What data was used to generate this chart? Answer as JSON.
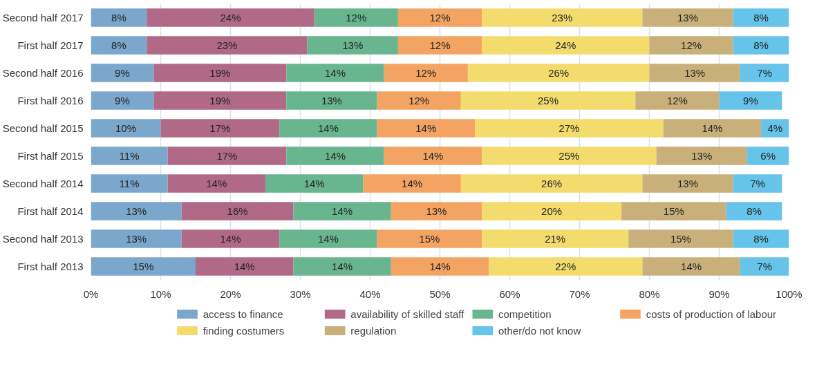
{
  "chart_data": {
    "type": "bar",
    "orientation": "horizontal",
    "stacked": true,
    "grid": "x",
    "legend": "bottom",
    "categories": [
      "Second half 2017",
      "First half 2017",
      "Second half 2016",
      "First half 2016",
      "Second half 2015",
      "First half 2015",
      "Second half 2014",
      "First half 2014",
      "Second half 2013",
      "First half 2013"
    ],
    "xlim": [
      0,
      100
    ],
    "xticks": [
      {
        "value": 0,
        "label": "0%"
      },
      {
        "value": 10,
        "label": "10%"
      },
      {
        "value": 20,
        "label": "20%"
      },
      {
        "value": 30,
        "label": "30%"
      },
      {
        "value": 40,
        "label": "40%"
      },
      {
        "value": 50,
        "label": "50%"
      },
      {
        "value": 60,
        "label": "60%"
      },
      {
        "value": 70,
        "label": "70%"
      },
      {
        "value": 80,
        "label": "80%"
      },
      {
        "value": 90,
        "label": "90%"
      },
      {
        "value": 100,
        "label": "100%"
      }
    ],
    "series": [
      {
        "name": "access to finance",
        "color": "#7ba7cc",
        "values": [
          8,
          8,
          9,
          9,
          10,
          11,
          11,
          13,
          13,
          15
        ],
        "value_labels": [
          "8%",
          "8%",
          "9%",
          "9%",
          "10%",
          "11%",
          "11%",
          "13%",
          "13%",
          "15%"
        ]
      },
      {
        "name": "availability of skilled staff",
        "color": "#b06a87",
        "values": [
          24,
          23,
          19,
          19,
          17,
          17,
          14,
          16,
          14,
          14
        ],
        "value_labels": [
          "24%",
          "23%",
          "19%",
          "19%",
          "17%",
          "17%",
          "14%",
          "16%",
          "14%",
          "14%"
        ]
      },
      {
        "name": "competition",
        "color": "#68b58f",
        "values": [
          12,
          13,
          14,
          13,
          14,
          14,
          14,
          14,
          14,
          14
        ],
        "value_labels": [
          "12%",
          "13%",
          "14%",
          "13%",
          "14%",
          "14%",
          "14%",
          "14%",
          "14%",
          "14%"
        ]
      },
      {
        "name": "costs of production of labour",
        "color": "#f4a462",
        "values": [
          12,
          12,
          12,
          12,
          14,
          14,
          14,
          13,
          15,
          14
        ],
        "value_labels": [
          "12%",
          "12%",
          "12%",
          "12%",
          "14%",
          "14%",
          "14%",
          "13%",
          "15%",
          "14%"
        ]
      },
      {
        "name": "finding costumers",
        "color": "#f3dc6d",
        "values": [
          23,
          24,
          26,
          25,
          27,
          25,
          26,
          20,
          21,
          22
        ],
        "value_labels": [
          "23%",
          "24%",
          "26%",
          "25%",
          "27%",
          "25%",
          "26%",
          "20%",
          "21%",
          "22%"
        ]
      },
      {
        "name": "regulation",
        "color": "#c9b07a",
        "values": [
          13,
          12,
          13,
          12,
          14,
          13,
          13,
          15,
          15,
          14
        ],
        "value_labels": [
          "13%",
          "12%",
          "13%",
          "12%",
          "14%",
          "13%",
          "13%",
          "15%",
          "15%",
          "14%"
        ]
      },
      {
        "name": "other/do not know",
        "color": "#66c3e9",
        "values": [
          8,
          8,
          7,
          9,
          4,
          6,
          7,
          8,
          8,
          7
        ],
        "value_labels": [
          "8%",
          "8%",
          "7%",
          "9%",
          "4%",
          "6%",
          "7%",
          "8%",
          "8%",
          "7%"
        ]
      }
    ]
  }
}
